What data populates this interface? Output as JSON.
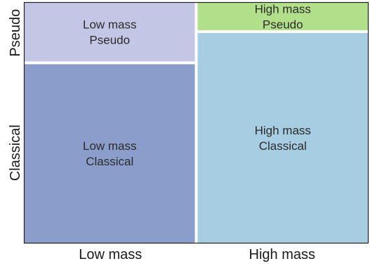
{
  "chart_data": {
    "type": "mosaic",
    "title": "",
    "xlabel": "",
    "ylabel": "",
    "x_categories": [
      "Low mass",
      "High mass"
    ],
    "y_categories": [
      "Classical",
      "Pseudo"
    ],
    "x_widths": [
      0.5,
      0.5
    ],
    "cells": [
      {
        "x": "Low mass",
        "y": "Classical",
        "fraction": 0.75,
        "label": [
          "Low mass",
          "Classical"
        ],
        "color": "#8b9ecb"
      },
      {
        "x": "Low mass",
        "y": "Pseudo",
        "fraction": 0.25,
        "label": [
          "Low mass",
          "Pseudo"
        ],
        "color": "#c4c6e6"
      },
      {
        "x": "High mass",
        "y": "Classical",
        "fraction": 0.88,
        "label": [
          "High mass",
          "Classical"
        ],
        "color": "#a6cde2"
      },
      {
        "x": "High mass",
        "y": "Pseudo",
        "fraction": 0.12,
        "label": [
          "High mass",
          "Pseudo"
        ],
        "color": "#b2df8a"
      }
    ],
    "grid": false,
    "legend": "none"
  }
}
